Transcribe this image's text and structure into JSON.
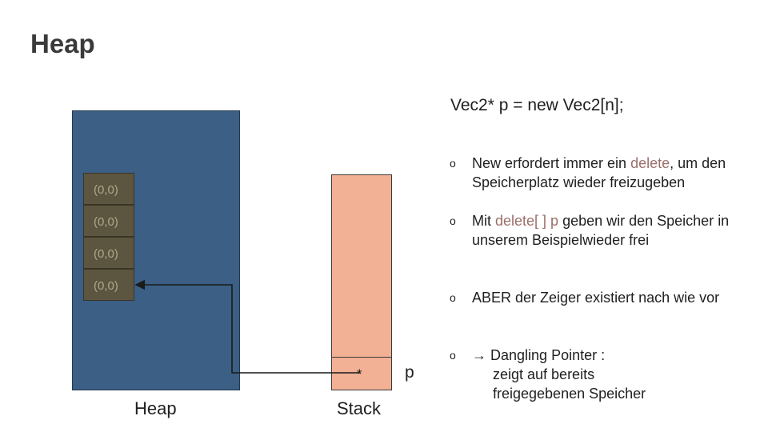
{
  "title": "Heap",
  "code": "Vec2* p = new Vec2[n];",
  "heap": {
    "cells": [
      "(0,0)",
      "(0,0)",
      "(0,0)",
      "(0,0)"
    ],
    "label": "Heap"
  },
  "stack": {
    "label": "Stack",
    "pointer_symbol": "*",
    "pointer_name": "p"
  },
  "bullets": {
    "marker": "o",
    "b1": {
      "pre": "New erfordert immer ein ",
      "hl": "delete",
      "post": ", um den Speicherplatz wieder freizugeben"
    },
    "b2": {
      "pre": "Mit ",
      "hl": "delete[  ] p",
      "post": " geben wir den Speicher in unserem Beispielwieder frei"
    },
    "b3": {
      "text": "ABER der Zeiger existiert nach wie vor"
    },
    "b4": {
      "arrow": "→",
      "line1": "Dangling Pointer :",
      "line2": "zeigt auf bereits",
      "line3": "freigegebenen Speicher"
    }
  },
  "colors": {
    "heap_fill": "#3b5f85",
    "cell_fill": "#5c5540",
    "stack_fill": "#f2b095",
    "highlight": "#9b6f6a"
  }
}
